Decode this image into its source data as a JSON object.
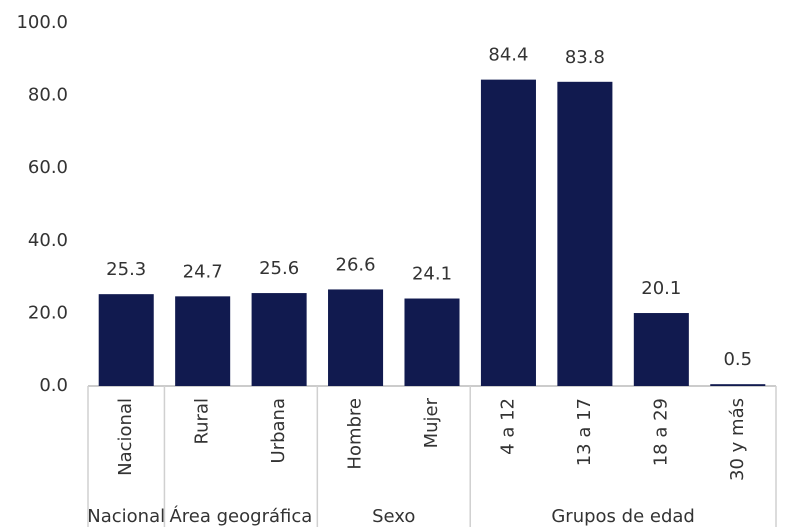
{
  "chart_data": {
    "type": "bar",
    "color": "#111a4f",
    "groups": [
      {
        "name": "Nacional",
        "categories": [
          "Nacional"
        ],
        "values": [
          25.3
        ]
      },
      {
        "name": "Área geográfica",
        "categories": [
          "Rural",
          "Urbana"
        ],
        "values": [
          24.7,
          25.6
        ]
      },
      {
        "name": "Sexo",
        "categories": [
          "Hombre",
          "Mujer"
        ],
        "values": [
          26.6,
          24.1
        ]
      },
      {
        "name": "Grupos de edad",
        "categories": [
          "4 a 12",
          "13 a 17",
          "18 a 29",
          "30 y más"
        ],
        "values": [
          84.4,
          83.8,
          20.1,
          0.5
        ]
      }
    ],
    "ylim": [
      0,
      100
    ],
    "yticks": [
      {
        "value": 0,
        "label": "0.0"
      },
      {
        "value": 20,
        "label": "20.0"
      },
      {
        "value": 40,
        "label": "40.0"
      },
      {
        "value": 60,
        "label": "60.0"
      },
      {
        "value": 80,
        "label": "80.0"
      },
      {
        "value": 100,
        "label": "100.0"
      }
    ],
    "grid": false
  }
}
